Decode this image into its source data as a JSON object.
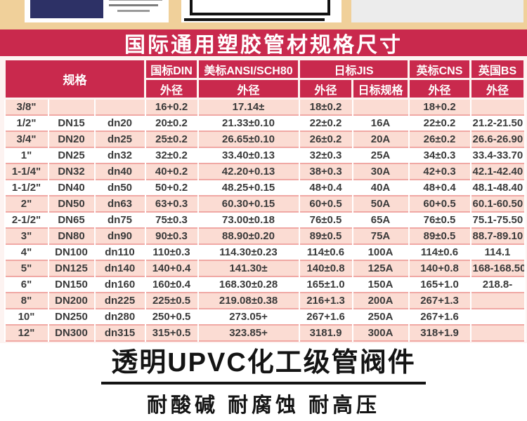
{
  "banner": {
    "title": "国际通用塑胶管材规格尺寸"
  },
  "colors": {
    "banner_crimson": "#c9294d",
    "top_tan": "#f0d09a",
    "row_pink": "#fbdcd3",
    "row_divider": "#f0a8a4",
    "navy_card": "#2d3166"
  },
  "table": {
    "group_headers": {
      "spec": "规格",
      "din": "国标DIN",
      "ansi": "美标ANSI/SCH80",
      "jis": "日标JIS",
      "cns": "英标CNS",
      "bs": "英国BS"
    },
    "sub_headers": {
      "din_od": "外径",
      "ansi_od": "外径",
      "jis_od": "外径",
      "jis_spec": "日标规格",
      "cns_od": "外径",
      "bs_od": "外径"
    },
    "rows": [
      [
        "3/8\"",
        "",
        "",
        "16+0.2",
        "17.14±",
        "18±0.2",
        "",
        "18+0.2",
        ""
      ],
      [
        "1/2\"",
        "DN15",
        "dn20",
        "20±0.2",
        "21.33±0.10",
        "22±0.2",
        "16A",
        "22±0.2",
        "21.2-21.50"
      ],
      [
        "3/4\"",
        "DN20",
        "dn25",
        "25±0.2",
        "26.65±0.10",
        "26±0.2",
        "20A",
        "26±0.2",
        "26.6-26.90"
      ],
      [
        "1\"",
        "DN25",
        "dn32",
        "32±0.2",
        "33.40±0.13",
        "32±0.3",
        "25A",
        "34±0.3",
        "33.4-33.70"
      ],
      [
        "1-1/4\"",
        "DN32",
        "dn40",
        "40+0.2",
        "42.20+0.13",
        "38+0.3",
        "30A",
        "42+0.3",
        "42.1-42.40"
      ],
      [
        "1-1/2\"",
        "DN40",
        "dn50",
        "50+0.2",
        "48.25+0.15",
        "48+0.4",
        "40A",
        "48+0.4",
        "48.1-48.40"
      ],
      [
        "2\"",
        "DN50",
        "dn63",
        "63+0.3",
        "60.30+0.15",
        "60+0.5",
        "50A",
        "60+0.5",
        "60.1-60.50"
      ],
      [
        "2-1/2\"",
        "DN65",
        "dn75",
        "75±0.3",
        "73.00±0.18",
        "76±0.5",
        "65A",
        "76±0.5",
        "75.1-75.50"
      ],
      [
        "3\"",
        "DN80",
        "dn90",
        "90±0.3",
        "88.90±0.20",
        "89±0.5",
        "75A",
        "89±0.5",
        "88.7-89.10"
      ],
      [
        "4\"",
        "DN100",
        "dn110",
        "110±0.3",
        "114.30±0.23",
        "114±0.6",
        "100A",
        "114±0.6",
        "114.1"
      ],
      [
        "5\"",
        "DN125",
        "dn140",
        "140+0.4",
        "141.30±",
        "140±0.8",
        "125A",
        "140+0.8",
        "168-168.50"
      ],
      [
        "6\"",
        "DN150",
        "dn160",
        "160±0.4",
        "168.30±0.28",
        "165±1.0",
        "150A",
        "165+1.0",
        "218.8-"
      ],
      [
        "8\"",
        "DN200",
        "dn225",
        "225±0.5",
        "219.08±0.38",
        "216+1.3",
        "200A",
        "267+1.3",
        ""
      ],
      [
        "10\"",
        "DN250",
        "dn280",
        "250+0.5",
        "273.05+",
        "267+1.6",
        "250A",
        "267+1.6",
        ""
      ],
      [
        "12\"",
        "DN300",
        "dn315",
        "315+0.5",
        "323.85+",
        "3181.9",
        "300A",
        "318+1.9",
        ""
      ]
    ]
  },
  "bottom": {
    "title": "透明UPVC化工级管阀件",
    "subtitle": "耐酸碱 耐腐蚀 耐高压"
  }
}
